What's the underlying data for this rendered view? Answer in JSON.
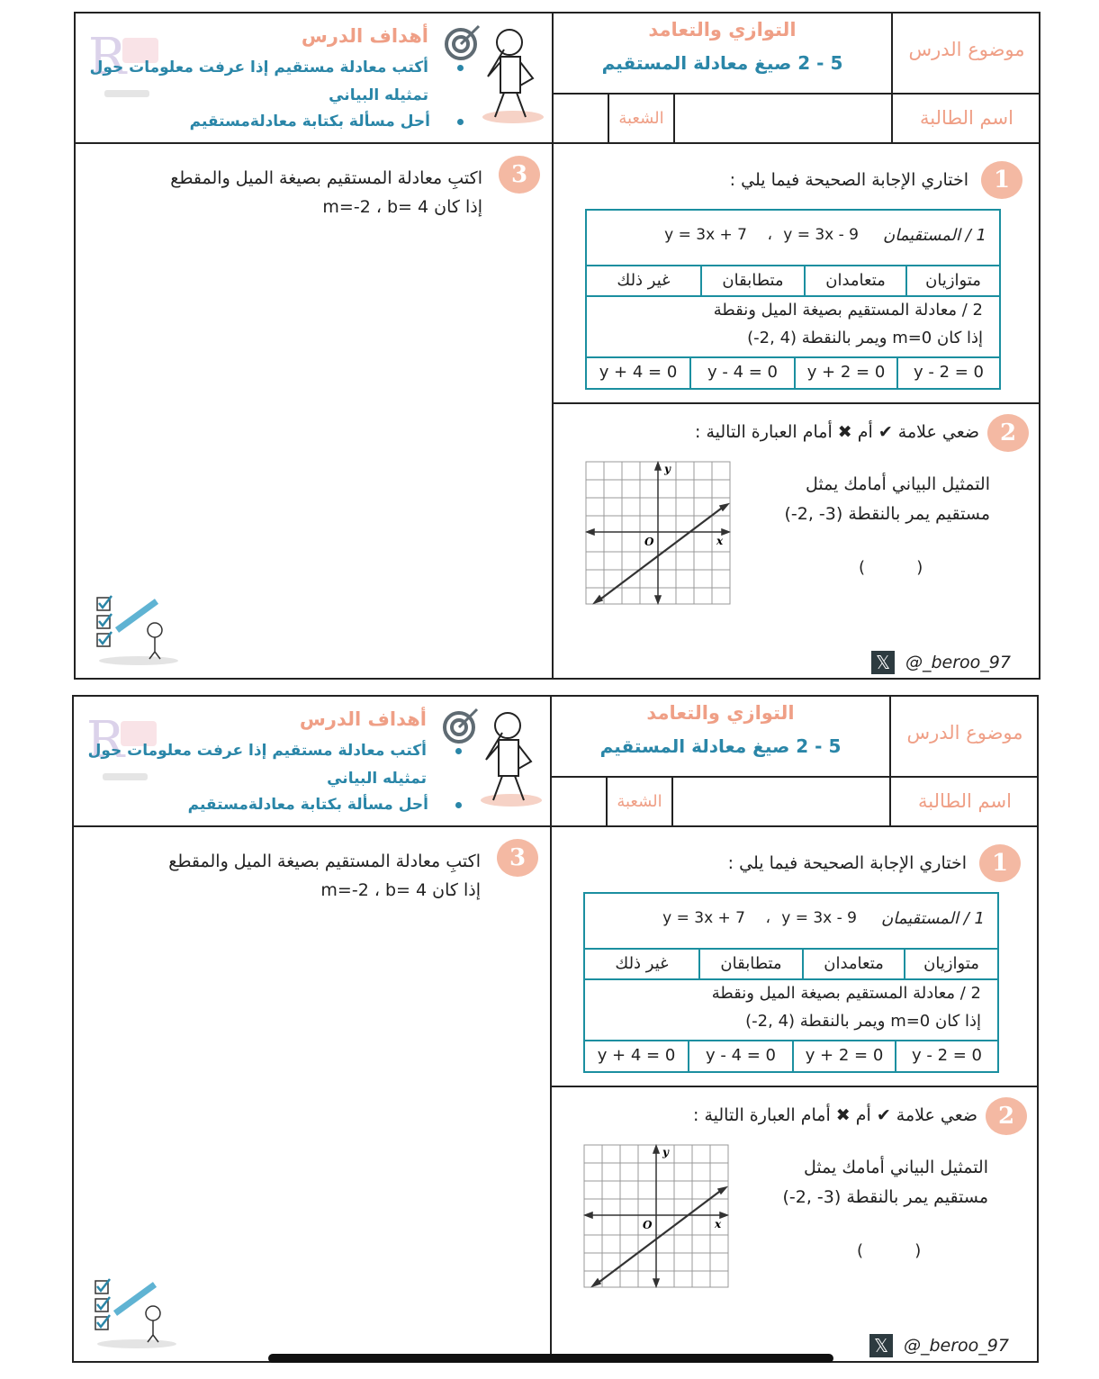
{
  "header": {
    "topic_label": "موضوع الدرس",
    "unit": "التوازي والتعامد",
    "lesson": "5 - 2 صيغ معادلة المستقيم",
    "student_label": "اسم الطالبة",
    "section_label": "الشعبة"
  },
  "goals": {
    "title": "أهداف الدرس",
    "items": [
      "أكتب معادلة مستقيم إذا عرفت معلومات حول",
      "تمثيله البياني",
      "أحل مسألة بكتابة معادلةمستقيم"
    ]
  },
  "q1": {
    "number": "1",
    "title": "اختاري الإجابة الصحيحة فيما يلي :",
    "item1": {
      "text": "1 / المستقيمان",
      "eq1": "y = 3x - 9",
      "sep": "،",
      "eq2": "y = 3x + 7",
      "options": [
        "متوازيان",
        "متعامدان",
        "متطابقان",
        "غير ذلك"
      ]
    },
    "item2": {
      "line1": "2 / معادلة المستقيم بصيغة الميل ونقطة",
      "line2": "إذا كان m=0 ويمر بالنقطة (4 ,2-)",
      "options": [
        "y - 2 = 0",
        "y + 2 = 0",
        "y - 4 = 0",
        "y + 4 = 0"
      ]
    }
  },
  "q2": {
    "number": "2",
    "title": "ضعي علامة ✔ أم ✖ أمام العبارة التالية :",
    "statement_line1": "التمثيل البياني أمامك يمثل",
    "statement_line2": "مستقيم يمر بالنقطة (3- ,2-)",
    "answer_blank": "(          )",
    "graph": {
      "x_label": "x",
      "y_label": "y",
      "origin_label": "O"
    }
  },
  "q3": {
    "number": "3",
    "line1": "اكتبِ معادلة المستقيم بصيغة الميل والمقطع",
    "line2": "إذا كان m=-2 ، b= 4"
  },
  "footer": {
    "handle": "@_beroo_97",
    "icon": "x-logo-icon"
  },
  "colors": {
    "salmon": "#ef9f86",
    "blue": "#2a86a8",
    "table_border": "#1b8fa0"
  }
}
